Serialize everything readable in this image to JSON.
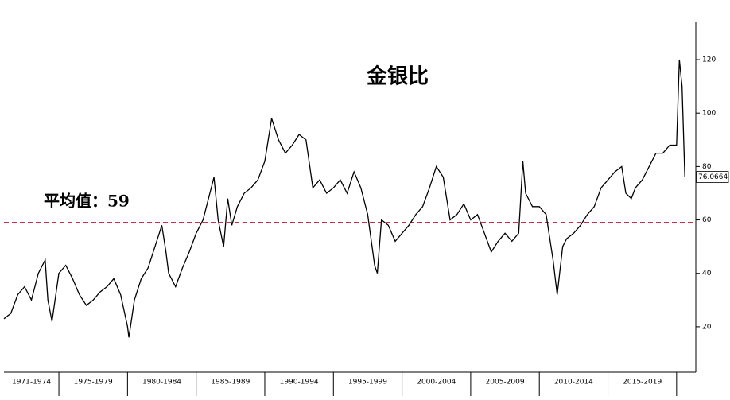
{
  "chart_data": {
    "type": "line",
    "title": "金银比",
    "x": [
      1971.0,
      1971.5,
      1972.0,
      1972.5,
      1973.0,
      1973.5,
      1974.0,
      1974.2,
      1974.5,
      1975.0,
      1975.5,
      1976.0,
      1976.5,
      1977.0,
      1977.5,
      1978.0,
      1978.5,
      1979.0,
      1979.5,
      1980.0,
      1980.1,
      1980.5,
      1981.0,
      1981.5,
      1982.0,
      1982.5,
      1982.8,
      1983.0,
      1983.5,
      1984.0,
      1984.5,
      1985.0,
      1985.5,
      1986.0,
      1986.3,
      1986.6,
      1987.0,
      1987.3,
      1987.6,
      1988.0,
      1988.5,
      1989.0,
      1989.5,
      1990.0,
      1990.5,
      1991.0,
      1991.5,
      1992.0,
      1992.5,
      1993.0,
      1993.5,
      1994.0,
      1994.5,
      1995.0,
      1995.5,
      1996.0,
      1996.5,
      1997.0,
      1997.5,
      1998.0,
      1998.2,
      1998.5,
      1999.0,
      1999.5,
      2000.0,
      2000.5,
      2001.0,
      2001.5,
      2002.0,
      2002.5,
      2003.0,
      2003.5,
      2004.0,
      2004.5,
      2005.0,
      2005.5,
      2006.0,
      2006.5,
      2007.0,
      2007.5,
      2008.0,
      2008.5,
      2008.8,
      2009.0,
      2009.5,
      2010.0,
      2010.5,
      2011.0,
      2011.3,
      2011.7,
      2012.0,
      2012.5,
      2013.0,
      2013.5,
      2014.0,
      2014.5,
      2015.0,
      2015.5,
      2016.0,
      2016.3,
      2016.7,
      2017.0,
      2017.5,
      2018.0,
      2018.5,
      2019.0,
      2019.5,
      2020.0,
      2020.2,
      2020.4,
      2020.6
    ],
    "series": [
      {
        "color": "#000000",
        "values": [
          23,
          25,
          32,
          35,
          30,
          40,
          45,
          30,
          22,
          40,
          43,
          38,
          32,
          28,
          30,
          33,
          35,
          38,
          32,
          20,
          16,
          30,
          38,
          42,
          50,
          58,
          48,
          40,
          35,
          42,
          48,
          55,
          60,
          70,
          76,
          60,
          50,
          68,
          58,
          65,
          70,
          72,
          75,
          82,
          98,
          90,
          85,
          88,
          92,
          90,
          72,
          75,
          70,
          72,
          75,
          70,
          78,
          72,
          62,
          43,
          40,
          60,
          58,
          52,
          55,
          58,
          62,
          65,
          72,
          80,
          76,
          60,
          62,
          66,
          60,
          62,
          55,
          48,
          52,
          55,
          52,
          55,
          82,
          70,
          65,
          65,
          62,
          45,
          32,
          50,
          53,
          55,
          58,
          62,
          65,
          72,
          75,
          78,
          80,
          70,
          68,
          72,
          75,
          80,
          85,
          85,
          88,
          88,
          120,
          110,
          76.0664
        ]
      }
    ],
    "end_label": "76.0664",
    "average": 59,
    "average_label": "平均值：59",
    "average_color": "#c8102e",
    "xlim": [
      1971,
      2021.4
    ],
    "ylim": [
      3,
      134
    ],
    "yticks": [
      20,
      40,
      60,
      80,
      100,
      120
    ],
    "periods": [
      {
        "label": "1971-1974",
        "start": 1971,
        "end": 1975
      },
      {
        "label": "1975-1979",
        "start": 1975,
        "end": 1980
      },
      {
        "label": "1980-1984",
        "start": 1980,
        "end": 1985
      },
      {
        "label": "1985-1989",
        "start": 1985,
        "end": 1990
      },
      {
        "label": "1990-1994",
        "start": 1990,
        "end": 1995
      },
      {
        "label": "1995-1999",
        "start": 1995,
        "end": 2000
      },
      {
        "label": "2000-2004",
        "start": 2000,
        "end": 2005
      },
      {
        "label": "2005-2009",
        "start": 2005,
        "end": 2010
      },
      {
        "label": "2010-2014",
        "start": 2010,
        "end": 2015
      },
      {
        "label": "2015-2019",
        "start": 2015,
        "end": 2020
      }
    ]
  }
}
